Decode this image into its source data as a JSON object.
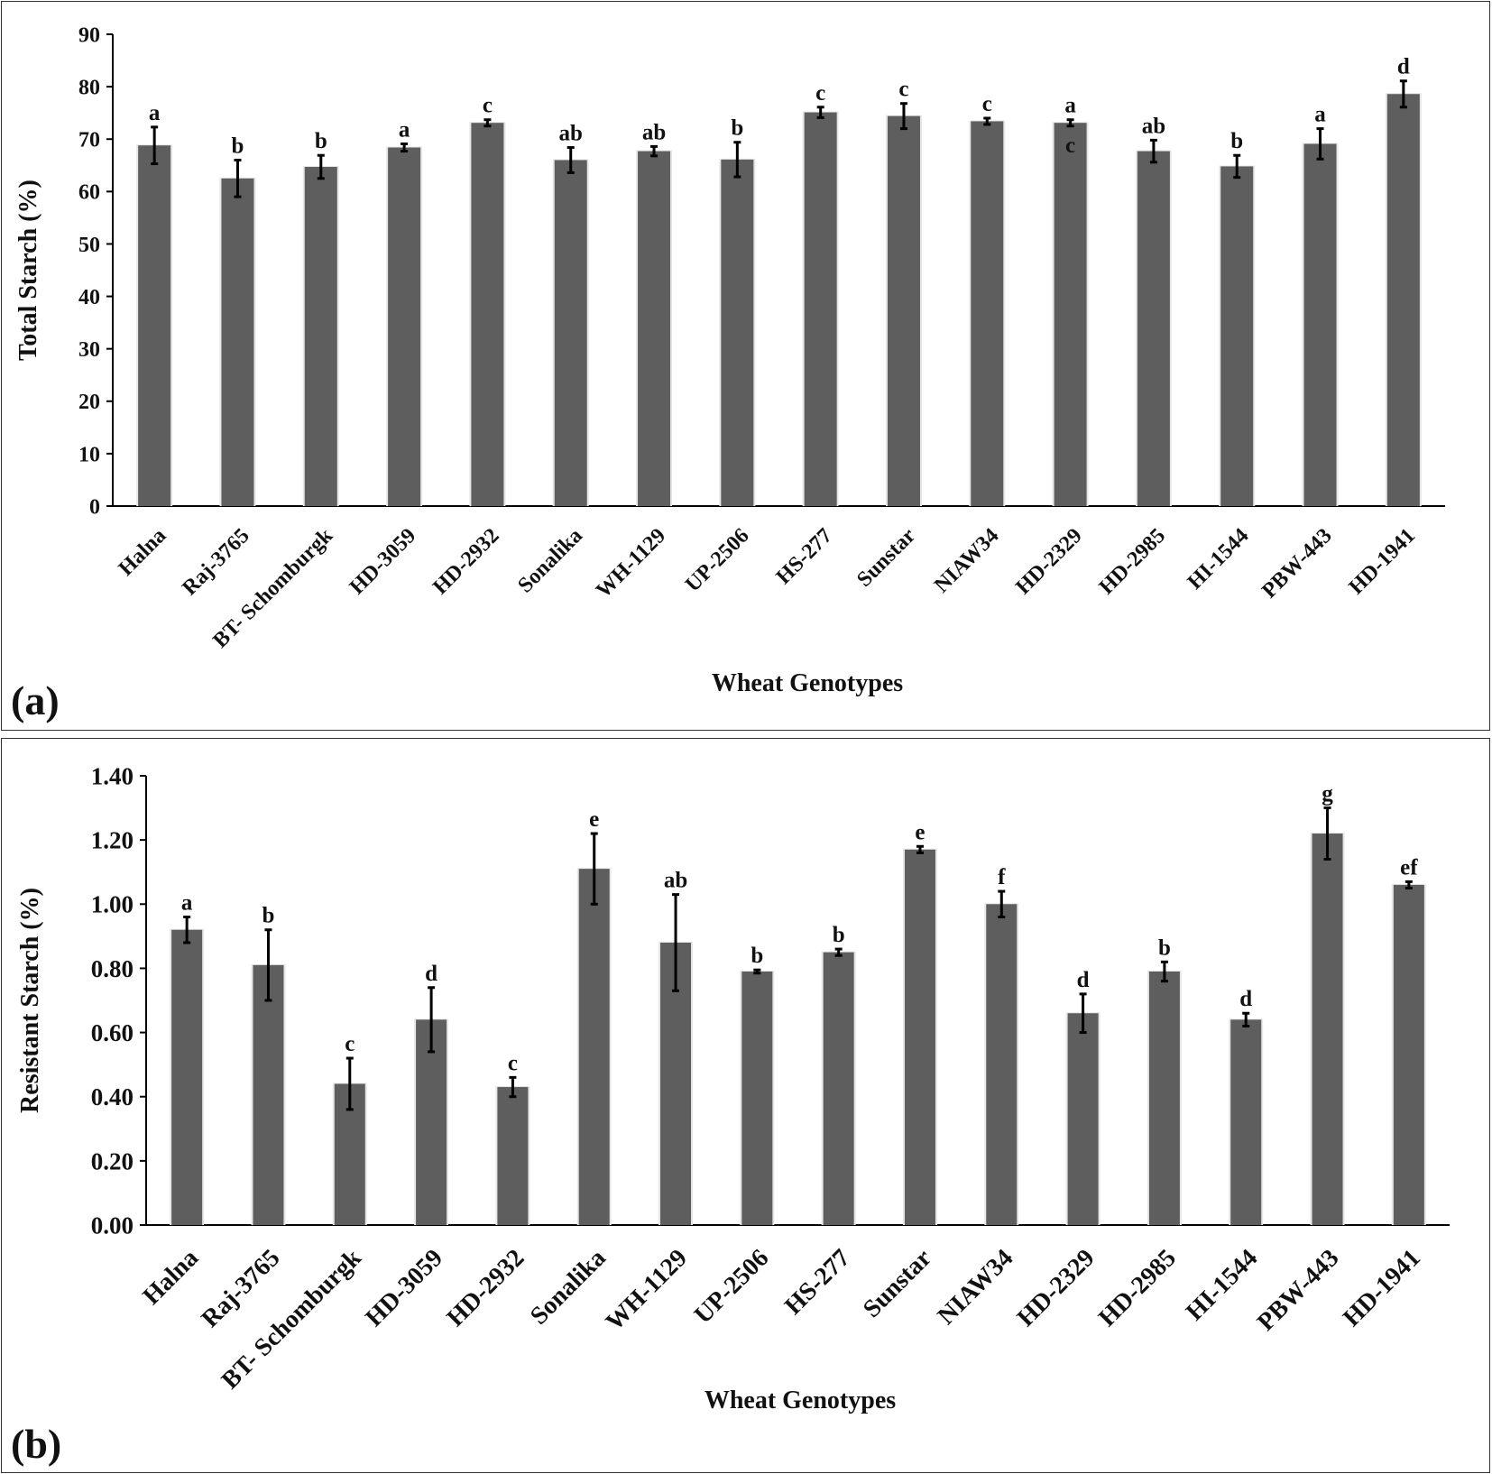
{
  "chart_data": [
    {
      "type": "bar",
      "panel_label": "(a)",
      "ylabel": "Total Starch (%)",
      "xlabel": "Wheat Genotypes",
      "ylim": [
        0,
        90
      ],
      "yticks": [
        "0",
        "10",
        "20",
        "30",
        "40",
        "50",
        "60",
        "70",
        "80",
        "90"
      ],
      "categories": [
        "Halna",
        "Raj-3765",
        "BT- Schomburgk",
        "HD-3059",
        "HD-2932",
        "Sonalika",
        "WH-1129",
        "UP-2506",
        "HS-277",
        "Sunstar",
        "NIAW34",
        "HD-2329",
        "HD-2985",
        "HI-1544",
        "PBW-443",
        "HD-1941"
      ],
      "values": [
        68.8,
        62.5,
        64.7,
        68.4,
        73.1,
        66.0,
        67.7,
        66.1,
        75.1,
        74.4,
        73.4,
        73.1,
        67.7,
        64.8,
        69.1,
        78.6
      ],
      "errors": [
        3.5,
        3.5,
        2.2,
        0.7,
        0.6,
        2.4,
        0.9,
        3.3,
        1.0,
        2.4,
        0.6,
        0.6,
        2.1,
        2.1,
        2.9,
        2.5
      ],
      "labels": [
        "a",
        "b",
        "b",
        "a",
        "c",
        "ab",
        "ab",
        "b",
        "c",
        "c",
        "c",
        "a",
        "ab",
        "b",
        "a",
        "d"
      ],
      "inner_labels": [
        "",
        "",
        "",
        "",
        "",
        "",
        "",
        "",
        "",
        "",
        "",
        "c",
        "",
        "",
        "",
        ""
      ]
    },
    {
      "type": "bar",
      "panel_label": "(b)",
      "ylabel": "Resistant Starch (%)",
      "xlabel": "Wheat Genotypes",
      "ylim": [
        0,
        1.4
      ],
      "yticks": [
        "0.00",
        "0.20",
        "0.40",
        "0.60",
        "0.80",
        "1.00",
        "1.20",
        "1.40"
      ],
      "categories": [
        "Halna",
        "Raj-3765",
        "BT- Schomburgk",
        "HD-3059",
        "HD-2932",
        "Sonalika",
        "WH-1129",
        "UP-2506",
        "HS-277",
        "Sunstar",
        "NIAW34",
        "HD-2329",
        "HD-2985",
        "HI-1544",
        "PBW-443",
        "HD-1941"
      ],
      "values": [
        0.92,
        0.81,
        0.44,
        0.64,
        0.43,
        1.11,
        0.88,
        0.79,
        0.85,
        1.17,
        1.0,
        0.66,
        0.79,
        0.64,
        1.22,
        1.06
      ],
      "errors": [
        0.04,
        0.11,
        0.08,
        0.1,
        0.03,
        0.11,
        0.15,
        0.005,
        0.01,
        0.01,
        0.04,
        0.06,
        0.03,
        0.02,
        0.08,
        0.01
      ],
      "labels": [
        "a",
        "b",
        "c",
        "d",
        "c",
        "e",
        "ab",
        "b",
        "b",
        "e",
        "f",
        "d",
        "b",
        "d",
        "g",
        "ef"
      ],
      "inner_labels": [
        "",
        "",
        "",
        "",
        "",
        "",
        "",
        "",
        "",
        "",
        "",
        "",
        "",
        "",
        "",
        ""
      ]
    }
  ]
}
